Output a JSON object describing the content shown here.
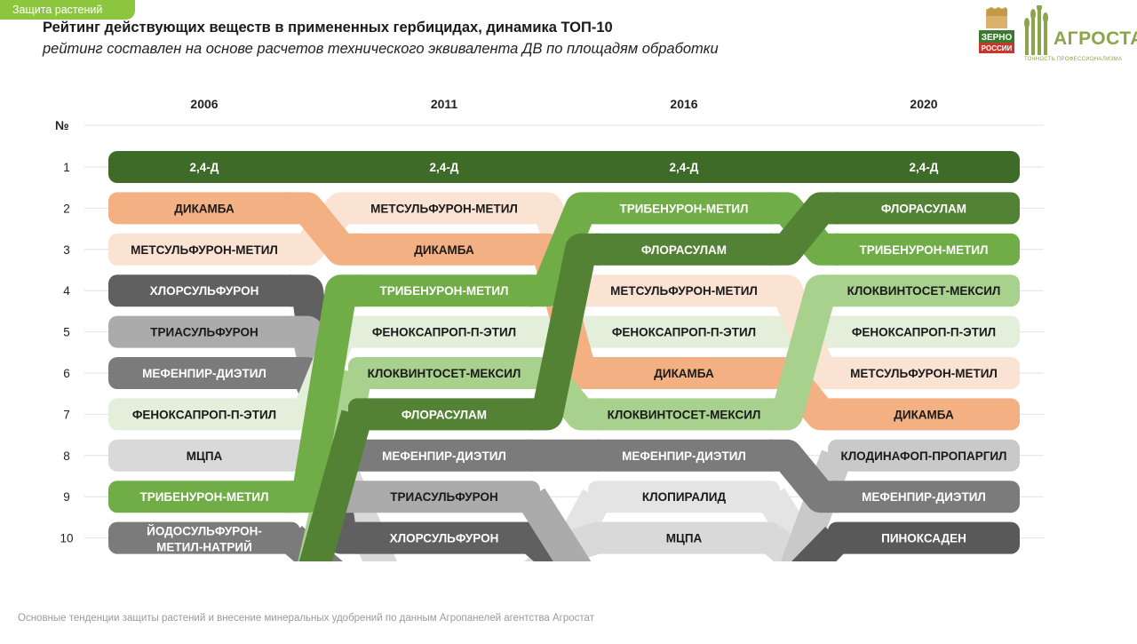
{
  "tag": "Защита растений",
  "title": "Рейтинг действующих веществ в примененных гербицидах, динамика ТОП-10",
  "subtitle": "рейтинг составлен на основе расчетов технического эквивалента ДВ по площадям обработки",
  "footer": "Основные тенденции защиты растений и внесение минеральных удобрений  по данным Агропанелей агентства Агростат",
  "logos": {
    "zerno": [
      "ЗЕРНО",
      "РОССИИ"
    ],
    "agrostat": "АГРОСТАТ",
    "agrostat_slogan": "ТОЧНОСТЬ ПРОФЕССИОНАЛИЗМА"
  },
  "chart_data": {
    "type": "table",
    "rank_header": "№",
    "years": [
      "2006",
      "2011",
      "2016",
      "2020"
    ],
    "ranks": [
      "1",
      "2",
      "3",
      "4",
      "5",
      "6",
      "7",
      "8",
      "9",
      "10"
    ],
    "series": [
      {
        "name": "2,4-Д",
        "ranks": [
          1,
          1,
          1,
          1
        ],
        "color": "#3e6b28",
        "text_color": "#ffffff"
      },
      {
        "name": "ДИКАМБА",
        "ranks": [
          2,
          3,
          6,
          7
        ],
        "color": "#f2b083",
        "text_color": "#1a1a1a"
      },
      {
        "name": "МЕТСУЛЬФУРОН-МЕТИЛ",
        "ranks": [
          3,
          2,
          4,
          6
        ],
        "color": "#fbe3d3",
        "text_color": "#1a1a1a"
      },
      {
        "name": "ХЛОРСУЛЬФУРОН",
        "ranks": [
          4,
          10
        ],
        "color": "#606060",
        "text_color": "#ffffff"
      },
      {
        "name": "ТРИАСУЛЬФУРОН",
        "ranks": [
          5,
          9
        ],
        "color": "#ababab",
        "text_color": "#1a1a1a"
      },
      {
        "name": "МЕФЕНПИР-ДИЭТИЛ",
        "ranks": [
          6,
          8,
          8,
          9
        ],
        "color": "#7b7b7b",
        "text_color": "#ffffff"
      },
      {
        "name": "ФЕНОКСАПРОП-П-ЭТИЛ",
        "ranks": [
          7,
          5,
          5,
          5
        ],
        "color": "#e3efdb",
        "text_color": "#1a1a1a"
      },
      {
        "name": "МЦПА",
        "ranks": [
          8,
          null,
          10
        ],
        "color": "#d9d9d9",
        "text_color": "#1a1a1a"
      },
      {
        "name": "ТРИБЕНУРОН-МЕТИЛ",
        "ranks": [
          9,
          4,
          2,
          3
        ],
        "color": "#70ad47",
        "text_color": "#ffffff"
      },
      {
        "name": "ЙОДОСУЛЬФУРОН-МЕТИЛ-НАТРИЙ",
        "label": "ЙОДОСУЛЬФУРОН-\nМЕТИЛ-НАТРИЙ",
        "ranks": [
          10
        ],
        "color": "#7b7b7b",
        "text_color": "#ffffff"
      },
      {
        "name": "ФЛОРАСУЛАМ",
        "ranks": [
          null,
          7,
          3,
          2
        ],
        "color": "#548235",
        "text_color": "#ffffff"
      },
      {
        "name": "КЛОКВИНТОСЕТ-МЕКСИЛ",
        "ranks": [
          null,
          6,
          7,
          4
        ],
        "color": "#a9d18e",
        "text_color": "#1a1a1a"
      },
      {
        "name": "КЛОПИРАЛИД",
        "ranks": [
          null,
          null,
          9
        ],
        "color": "#e4e4e4",
        "text_color": "#1a1a1a"
      },
      {
        "name": "КЛОДИНАФОП-ПРОПАРГИЛ",
        "ranks": [
          null,
          null,
          null,
          8
        ],
        "color": "#c9c9c9",
        "text_color": "#1a1a1a"
      },
      {
        "name": "ПИНОКСАДЕН",
        "ranks": [
          null,
          null,
          null,
          10
        ],
        "color": "#595959",
        "text_color": "#ffffff"
      }
    ]
  }
}
